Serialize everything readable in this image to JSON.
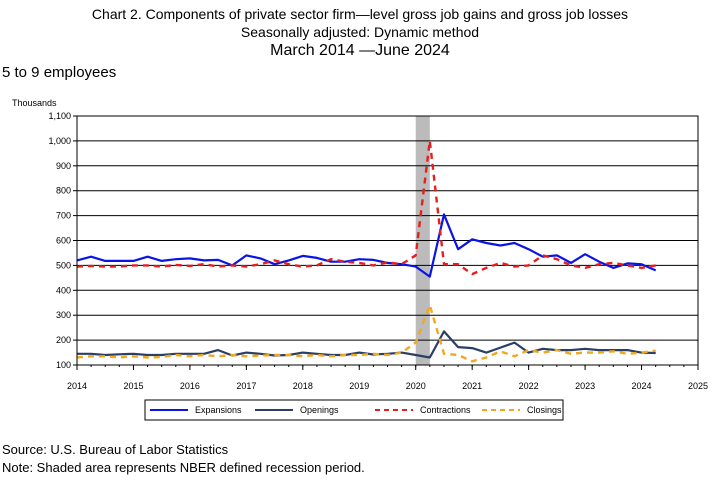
{
  "header": {
    "title_line1": "Chart 2. Components of private sector firm—level gross job gains and gross job losses",
    "title_line2": "Seasonally adjusted: Dynamic method",
    "title_line3": "March 2014  —June 2024",
    "subtitle": "5 to 9 employees",
    "unit_label": "Thousands"
  },
  "footer": {
    "source": "Source: U.S. Bureau of Labor Statistics",
    "note": "Note: Shaded area represents NBER defined recession period."
  },
  "colors": {
    "expansions": "#0a14e6",
    "openings": "#2b3f66",
    "contractions": "#e61e1e",
    "closings": "#f0a81e",
    "recession": "#bbbbbb"
  },
  "chart_data": {
    "type": "line",
    "title": "Chart 2. Components of private sector firm—level gross job gains and gross job losses",
    "ylabel": "Thousands",
    "ylim": [
      100,
      1100
    ],
    "xlim": [
      2014,
      2025
    ],
    "y_ticks": [
      "100",
      "200",
      "300",
      "400",
      "500",
      "600",
      "700",
      "800",
      "900",
      "1,000",
      "1,100"
    ],
    "x_ticks": [
      "2014",
      "2015",
      "2016",
      "2017",
      "2018",
      "2019",
      "2020",
      "2021",
      "2022",
      "2023",
      "2024",
      "2025"
    ],
    "grid": "horizontal",
    "legend_position": "bottom",
    "recession": [
      2020.0,
      2020.25
    ],
    "x": [
      2014.0,
      2014.25,
      2014.5,
      2014.75,
      2015.0,
      2015.25,
      2015.5,
      2015.75,
      2016.0,
      2016.25,
      2016.5,
      2016.75,
      2017.0,
      2017.25,
      2017.5,
      2017.75,
      2018.0,
      2018.25,
      2018.5,
      2018.75,
      2019.0,
      2019.25,
      2019.5,
      2019.75,
      2020.0,
      2020.25,
      2020.5,
      2020.75,
      2021.0,
      2021.25,
      2021.5,
      2021.75,
      2022.0,
      2022.25,
      2022.5,
      2022.75,
      2023.0,
      2023.25,
      2023.5,
      2023.75,
      2024.0,
      2024.25
    ],
    "series": [
      {
        "name": "Expansions",
        "style": "solid",
        "values": [
          520,
          535,
          518,
          518,
          518,
          535,
          518,
          525,
          528,
          520,
          522,
          500,
          540,
          528,
          505,
          520,
          538,
          530,
          515,
          515,
          525,
          522,
          510,
          505,
          495,
          455,
          705,
          565,
          605,
          590,
          580,
          590,
          565,
          535,
          540,
          510,
          545,
          515,
          490,
          508,
          505,
          480
        ]
      },
      {
        "name": "Openings",
        "style": "solid",
        "values": [
          145,
          145,
          140,
          143,
          145,
          140,
          140,
          145,
          145,
          145,
          160,
          138,
          150,
          145,
          138,
          140,
          150,
          145,
          140,
          140,
          150,
          142,
          145,
          150,
          140,
          130,
          235,
          172,
          168,
          150,
          170,
          190,
          150,
          165,
          160,
          160,
          165,
          160,
          160,
          160,
          150,
          148
        ]
      },
      {
        "name": "Contractions",
        "style": "dashed",
        "values": [
          495,
          498,
          495,
          495,
          500,
          500,
          495,
          502,
          498,
          505,
          495,
          500,
          495,
          505,
          520,
          505,
          495,
          500,
          525,
          515,
          510,
          500,
          512,
          505,
          540,
          1000,
          505,
          505,
          465,
          490,
          510,
          495,
          500,
          540,
          525,
          500,
          490,
          505,
          510,
          500,
          490,
          500
        ]
      },
      {
        "name": "Closings",
        "style": "dashed",
        "values": [
          130,
          135,
          135,
          130,
          135,
          130,
          132,
          140,
          135,
          140,
          135,
          140,
          135,
          138,
          140,
          140,
          135,
          140,
          135,
          140,
          140,
          145,
          140,
          150,
          190,
          340,
          145,
          140,
          115,
          130,
          155,
          135,
          160,
          150,
          160,
          145,
          150,
          150,
          155,
          145,
          150,
          158
        ]
      }
    ]
  }
}
